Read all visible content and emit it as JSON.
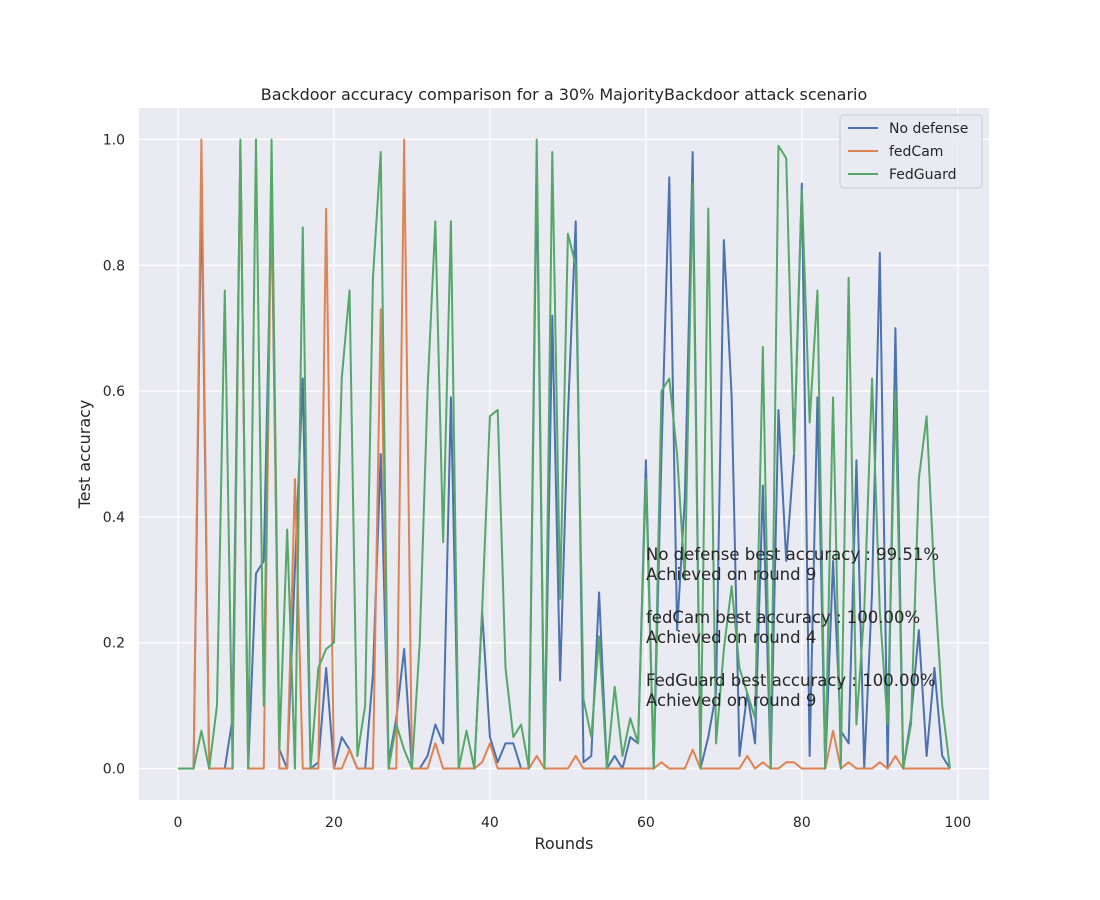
{
  "chart_data": {
    "type": "line",
    "title": "Backdoor accuracy comparison for a 30% MajorityBackdoor attack scenario",
    "xlabel": "Rounds",
    "ylabel": "Test accuracy",
    "xlim": [
      -5,
      104
    ],
    "ylim": [
      -0.05,
      1.05
    ],
    "xticks": [
      0,
      20,
      40,
      60,
      80,
      100
    ],
    "yticks": [
      0.0,
      0.2,
      0.4,
      0.6,
      0.8,
      1.0
    ],
    "xtick_labels": [
      "0",
      "20",
      "40",
      "60",
      "80",
      "100"
    ],
    "ytick_labels": [
      "0.0",
      "0.2",
      "0.4",
      "0.6",
      "0.8",
      "1.0"
    ],
    "grid": true,
    "legend_position": "top-right",
    "x": [
      0,
      1,
      2,
      3,
      4,
      5,
      6,
      7,
      8,
      9,
      10,
      11,
      12,
      13,
      14,
      15,
      16,
      17,
      18,
      19,
      20,
      21,
      22,
      23,
      24,
      25,
      26,
      27,
      28,
      29,
      30,
      31,
      32,
      33,
      34,
      35,
      36,
      37,
      38,
      39,
      40,
      41,
      42,
      43,
      44,
      45,
      46,
      47,
      48,
      49,
      50,
      51,
      52,
      53,
      54,
      55,
      56,
      57,
      58,
      59,
      60,
      61,
      62,
      63,
      64,
      65,
      66,
      67,
      68,
      69,
      70,
      71,
      72,
      73,
      74,
      75,
      76,
      77,
      78,
      79,
      80,
      81,
      82,
      83,
      84,
      85,
      86,
      87,
      88,
      89,
      90,
      91,
      92,
      93,
      94,
      95,
      96,
      97,
      98,
      99
    ],
    "series": [
      {
        "name": "No defense",
        "color": "#4c72b0",
        "values": [
          0,
          0,
          0,
          0.93,
          0,
          0,
          0,
          0.08,
          0.99,
          0,
          0.31,
          0.33,
          0.9,
          0.03,
          0,
          0.32,
          0.62,
          0,
          0.01,
          0.16,
          0,
          0.05,
          0.03,
          0,
          0,
          0.15,
          0.5,
          0.01,
          0.08,
          0.19,
          0,
          0,
          0.02,
          0.07,
          0.04,
          0.59,
          0,
          0,
          0,
          0.25,
          0.05,
          0.01,
          0.04,
          0.04,
          0,
          0,
          0.95,
          0,
          0.72,
          0.14,
          0.56,
          0.87,
          0.01,
          0.02,
          0.28,
          0,
          0.02,
          0,
          0.05,
          0.04,
          0.49,
          0,
          0.5,
          0.94,
          0.22,
          0.43,
          0.98,
          0,
          0.05,
          0.12,
          0.84,
          0.59,
          0.02,
          0.12,
          0.04,
          0.45,
          0,
          0.57,
          0.33,
          0.5,
          0.93,
          0.02,
          0.59,
          0,
          0.33,
          0.06,
          0.04,
          0.49,
          0,
          0.28,
          0.82,
          0,
          0.7,
          0,
          0.08,
          0.22,
          0.02,
          0.16,
          0.02,
          0
        ]
      },
      {
        "name": "fedCam",
        "color": "#dd8452",
        "values": [
          0,
          0,
          0,
          1.0,
          0,
          0,
          0,
          0,
          0.99,
          0,
          0,
          0,
          0.95,
          0,
          0,
          0.46,
          0,
          0,
          0,
          0.89,
          0,
          0,
          0.03,
          0,
          0,
          0,
          0.73,
          0,
          0,
          1.0,
          0,
          0,
          0,
          0.04,
          0,
          0,
          0,
          0,
          0,
          0.01,
          0.04,
          0,
          0,
          0,
          0,
          0,
          0.02,
          0,
          0,
          0,
          0,
          0.02,
          0,
          0,
          0,
          0,
          0,
          0,
          0,
          0,
          0,
          0,
          0.01,
          0,
          0,
          0,
          0.03,
          0,
          0,
          0,
          0,
          0,
          0,
          0.02,
          0,
          0.01,
          0,
          0,
          0.01,
          0.01,
          0,
          0,
          0,
          0,
          0.06,
          0,
          0.01,
          0,
          0,
          0,
          0.01,
          0,
          0.02,
          0,
          0,
          0,
          0,
          0,
          0,
          0
        ]
      },
      {
        "name": "FedGuard",
        "color": "#55a868",
        "values": [
          0,
          0,
          0,
          0.06,
          0,
          0.1,
          0.76,
          0,
          1.0,
          0,
          1.0,
          0.1,
          1.0,
          0.03,
          0.38,
          0,
          0.86,
          0,
          0.16,
          0.19,
          0.2,
          0.62,
          0.76,
          0.02,
          0.1,
          0.78,
          0.98,
          0,
          0.07,
          0.03,
          0,
          0.2,
          0.6,
          0.87,
          0.36,
          0.87,
          0,
          0.06,
          0,
          0.25,
          0.56,
          0.57,
          0.16,
          0.05,
          0.07,
          0,
          1.0,
          0,
          0.98,
          0.27,
          0.85,
          0.8,
          0.11,
          0.05,
          0.21,
          0,
          0.13,
          0.02,
          0.08,
          0.04,
          0.46,
          0,
          0.6,
          0.62,
          0.5,
          0.3,
          0.93,
          0,
          0.89,
          0.04,
          0.19,
          0.29,
          0.16,
          0.12,
          0.08,
          0.67,
          0,
          0.99,
          0.97,
          0.5,
          0.92,
          0.55,
          0.76,
          0,
          0.59,
          0,
          0.78,
          0.07,
          0.25,
          0.62,
          0.25,
          0.07,
          0.6,
          0,
          0.07,
          0.46,
          0.56,
          0.3,
          0.1,
          0
        ]
      }
    ],
    "annotations": [
      "No defense best accuracy : 99.51%",
      "Achieved on round 9",
      "fedCam best accuracy : 100.00%",
      "Achieved on round 4",
      "FedGuard best accuracy : 100.00%",
      "Achieved on round 9"
    ],
    "colors": {
      "plot_background": "#eaeaf2",
      "grid": "#ffffff",
      "text": "#262626"
    }
  }
}
